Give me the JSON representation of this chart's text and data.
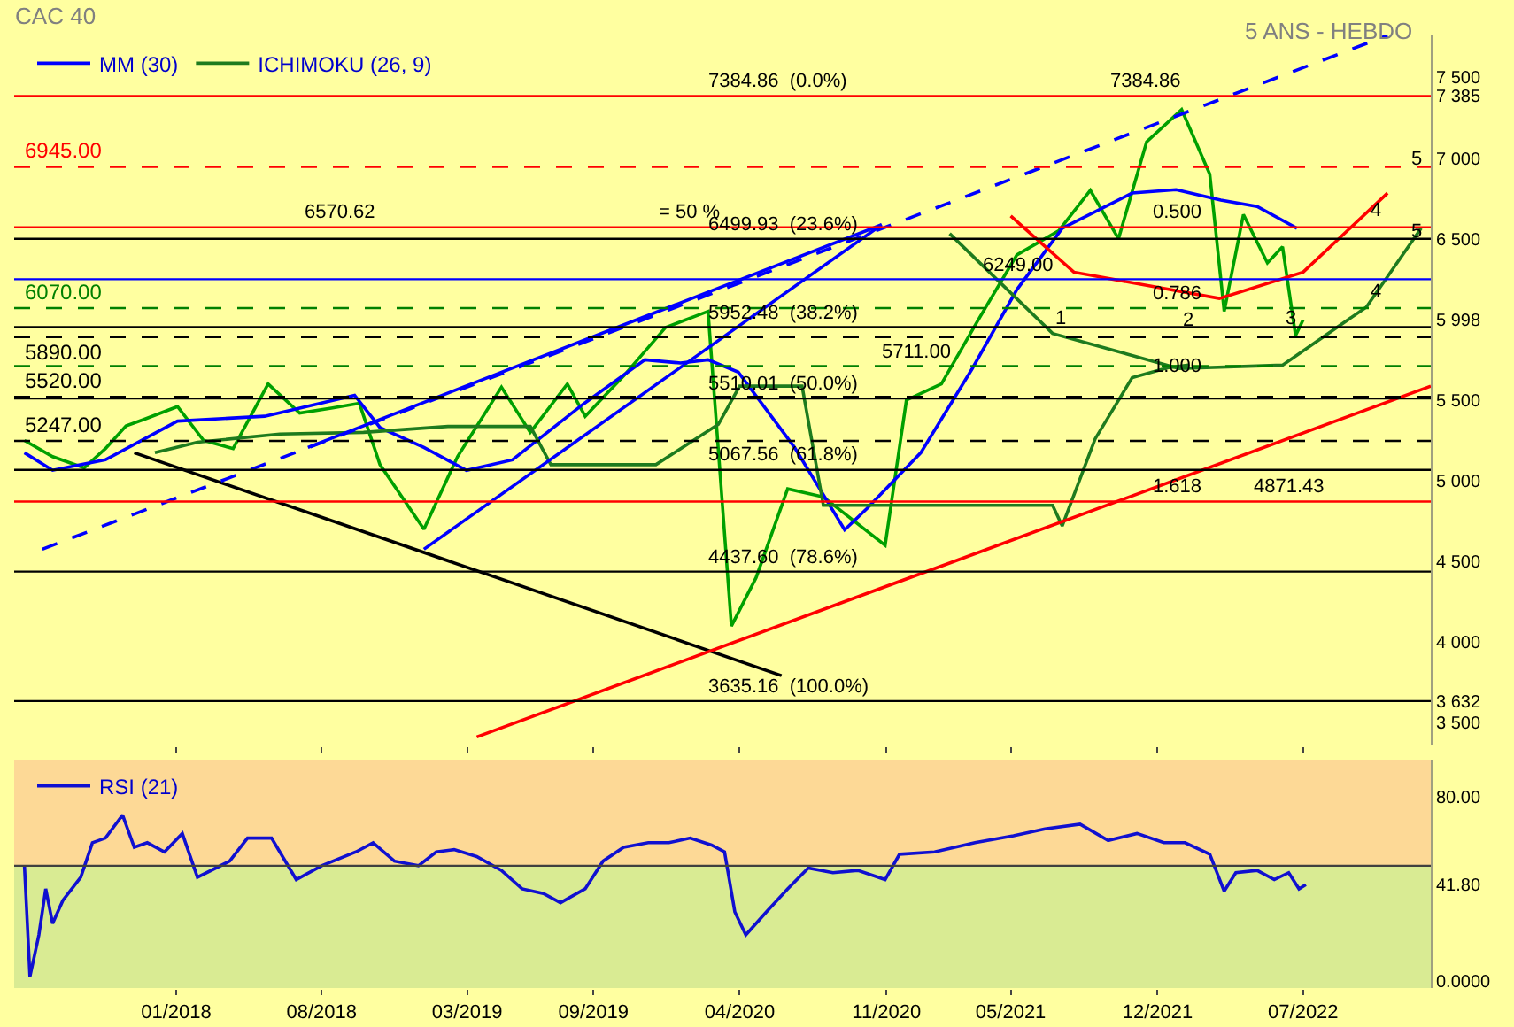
{
  "chart_data": [
    {
      "type": "line",
      "title": "CAC 40",
      "subtitle": "5 ANS - HEBDO",
      "legend": "top left",
      "tick_labels": "y",
      "x": [
        "2017-05-25",
        "2017-07-05",
        "2017-08-20",
        "2017-09-20",
        "2017-10-20",
        "2017-11-15",
        "2018-01-03",
        "2018-02-10",
        "2018-03-25",
        "2018-05-15",
        "2018-06-30",
        "2018-08-15",
        "2018-09-25",
        "2018-10-25",
        "2018-12-28",
        "2019-02-15",
        "2019-04-20",
        "2019-06-01",
        "2019-07-25",
        "2019-08-20",
        "2019-10-15",
        "2019-12-15",
        "2020-02-15",
        "2020-03-20",
        "2020-04-25",
        "2020-06-10",
        "2020-08-01",
        "2020-10-30",
        "2020-11-30",
        "2021-01-20",
        "2021-03-15",
        "2021-05-10",
        "2021-07-10",
        "2021-08-25",
        "2021-10-05",
        "2021-11-15",
        "2022-01-05",
        "2022-02-15",
        "2022-03-08",
        "2022-04-05",
        "2022-05-10",
        "2022-06-01",
        "2022-06-20",
        "2022-07-01"
      ],
      "xlim": [
        "2017-05-10",
        "2023-01-03"
      ],
      "xticks": [
        {
          "value": "2018-01-01",
          "label": null
        },
        {
          "value": "2018-08-01",
          "label": null
        },
        {
          "value": "2019-03-01",
          "label": null
        },
        {
          "value": "2019-09-01",
          "label": null
        },
        {
          "value": "2020-04-01",
          "label": null
        },
        {
          "value": "2020-11-01",
          "label": null
        },
        {
          "value": "2021-05-01",
          "label": null
        },
        {
          "value": "2021-12-01",
          "label": null
        },
        {
          "value": "2022-07-01",
          "label": null
        }
      ],
      "ylim": [
        3360,
        7760
      ],
      "yticks": [
        {
          "value": 3500,
          "label": "3 500"
        },
        {
          "value": 3632,
          "label": "3 632"
        },
        {
          "value": 4000,
          "label": "4 000"
        },
        {
          "value": 4500,
          "label": "4 500"
        },
        {
          "value": 5000,
          "label": "5 000"
        },
        {
          "value": 5500,
          "label": "5 500"
        },
        {
          "value": 5998,
          "label": "5 998"
        },
        {
          "value": 6500,
          "label": "6 500"
        },
        {
          "value": 7000,
          "label": "7 000"
        },
        {
          "value": 7385,
          "label": "7 385"
        },
        {
          "value": 7500,
          "label": "7 500"
        }
      ],
      "series": [
        {
          "color": "#00a000",
          "values": [
            5250,
            5150,
            5080,
            5200,
            5340,
            5380,
            5460,
            5250,
            5200,
            5600,
            5420,
            5450,
            5480,
            5100,
            4700,
            5150,
            5580,
            5300,
            5600,
            5400,
            5650,
            5950,
            6050,
            4100,
            4400,
            4950,
            4900,
            4600,
            5500,
            5600,
            6000,
            6400,
            6550,
            6800,
            6500,
            7100,
            7300,
            6900,
            6050,
            6650,
            6350,
            6450,
            5900,
            5998
          ]
        },
        {
          "name": "MM (30)",
          "color": "#0000ff",
          "x": [
            "2017-05-25",
            "2017-07-05",
            "2017-09-20",
            "2018-01-03",
            "2018-05-10",
            "2018-09-18",
            "2018-10-25",
            "2018-12-28",
            "2019-02-28",
            "2019-05-06",
            "2019-08-18",
            "2019-11-15",
            "2020-01-06",
            "2020-02-15",
            "2020-03-30",
            "2020-06-20",
            "2020-09-01",
            "2020-10-03",
            "2020-12-21",
            "2021-03-06",
            "2021-05-10",
            "2021-07-15",
            "2021-10-25",
            "2021-12-28",
            "2022-03-03",
            "2022-04-25",
            "2022-06-22"
          ],
          "values": [
            5174,
            5065,
            5130,
            5370,
            5400,
            5530,
            5330,
            5207,
            5065,
            5130,
            5478,
            5750,
            5730,
            5750,
            5674,
            5207,
            4696,
            4826,
            5174,
            5696,
            6185,
            6565,
            6783,
            6804,
            6740,
            6700,
            6565
          ]
        },
        {
          "name": "ICHIMOKU (26, 9)",
          "color": "#1e7b1e",
          "x": [
            "2017-12-01",
            "2018-02-01",
            "2018-06-01",
            "2018-10-01",
            "2019-02-01",
            "2019-06-01",
            "2019-07-01",
            "2019-12-01",
            "2020-03-01",
            "2020-04-01",
            "2020-07-01",
            "2020-08-01",
            "2021-07-01",
            "2021-07-15",
            "2021-09-01",
            "2021-10-25",
            "2021-12-15",
            "2022-01-15"
          ],
          "values": [
            5174,
            5239,
            5290,
            5300,
            5337,
            5337,
            5100,
            5100,
            5350,
            5587,
            5587,
            4848,
            4848,
            4720,
            5260,
            5640,
            5700,
            5717
          ]
        },
        {
          "color": "#1e7b1e",
          "x": [
            "2021-02-01",
            "2021-07-01",
            "2022-01-01",
            "2022-06-01",
            "2022-10-01",
            "2022-12-20"
          ],
          "values": [
            6532,
            5913,
            5696,
            5717,
            6076,
            6565
          ]
        },
        {
          "color": "#ff0000",
          "x": [
            "2021-05-01",
            "2021-08-01",
            "2022-03-01",
            "2022-07-01",
            "2022-11-01"
          ],
          "values": [
            6641,
            6293,
            6130,
            6293,
            6783
          ]
        },
        {
          "color": "#000000",
          "x": [
            "2017-11-01",
            "2020-06-01"
          ],
          "values": [
            5174,
            3793
          ]
        },
        {
          "color": "#ff0000",
          "x": [
            "2019-03-15",
            "2023-01-03"
          ],
          "values": [
            3413,
            5587
          ]
        },
        {
          "color": "#0000ff",
          "line_style": "dashed",
          "x": [
            "2017-06-20",
            "2022-11-01"
          ],
          "values": [
            4576,
            7760
          ]
        },
        {
          "color": "#0000ff",
          "x": [
            "2018-12-28",
            "2020-10-25"
          ],
          "values": [
            4576,
            6587
          ]
        },
        {
          "color": "#0000ff",
          "x": [
            "2018-07-12",
            "2020-10-25"
          ],
          "values": [
            5207,
            6587
          ]
        }
      ],
      "ref_lines": [
        {
          "axis": "y",
          "value": 7384.86,
          "color": "#ff0000"
        },
        {
          "axis": "y",
          "value": 6945,
          "label": "6945.00",
          "color": "#ff0000",
          "line_style": "dashed"
        },
        {
          "axis": "y",
          "value": 6570.62,
          "color": "#ff0000"
        },
        {
          "axis": "y",
          "value": 6249,
          "color": "#0000ff"
        },
        {
          "axis": "y",
          "value": 6070,
          "label": "6070.00",
          "color": "#008000",
          "line_style": "dashed"
        },
        {
          "axis": "y",
          "value": 5890,
          "label": "5890.00",
          "color": "#000000",
          "line_style": "dashed"
        },
        {
          "axis": "y",
          "value": 5711,
          "color": "#008000",
          "line_style": "dashed"
        },
        {
          "axis": "y",
          "value": 5520,
          "label": "5520.00",
          "color": "#000000",
          "line_style": "dashed"
        },
        {
          "axis": "y",
          "value": 5247,
          "label": "5247.00",
          "color": "#000000",
          "line_style": "dashed"
        },
        {
          "axis": "y",
          "value": 4871.43,
          "color": "#ff0000"
        },
        {
          "axis": "y",
          "value": 6499.93,
          "color": "#000000"
        },
        {
          "axis": "y",
          "value": 5952.48,
          "color": "#000000"
        },
        {
          "axis": "y",
          "value": 5510.01,
          "color": "#000000"
        },
        {
          "axis": "y",
          "value": 5067.56,
          "color": "#000000"
        },
        {
          "axis": "y",
          "value": 4437.6,
          "color": "#000000"
        },
        {
          "axis": "y",
          "value": 3635.16,
          "color": "#000000"
        }
      ],
      "annotations": [
        {
          "text": "7384.86  (0.0%)",
          "x": "2020-02-10",
          "y": 7384.86
        },
        {
          "text": "6499.93  (23.6%)",
          "x": "2020-02-10",
          "y": 6499.93
        },
        {
          "text": "5952.48  (38.2%)",
          "x": "2020-02-10",
          "y": 5952.48
        },
        {
          "text": "5510.01  (50.0%)",
          "x": "2020-02-10",
          "y": 5510.01
        },
        {
          "text": "5067.56  (61.8%)",
          "x": "2020-02-10",
          "y": 5067.56
        },
        {
          "text": "4437.60  (78.6%)",
          "x": "2020-02-10",
          "y": 4437.6
        },
        {
          "text": "3635.16  (100.0%)",
          "x": "2020-02-10",
          "y": 3635.16
        },
        {
          "text": "6249.00",
          "x": "2021-03-15",
          "y": 6249
        },
        {
          "text": "5711.00",
          "x": "2020-10-20",
          "y": 5711
        },
        {
          "text": "4871.43",
          "x": "2022-04-15",
          "y": 4871.43
        },
        {
          "text": "7384.86",
          "x": "2021-09-18",
          "y": 7384.86
        },
        {
          "text": "6570.62",
          "x": "2018-07-01",
          "y": 6570.62
        },
        {
          "text": "= 50 %",
          "x": "2019-12-01",
          "y": 6570.62
        },
        {
          "text": "0.500",
          "x": "2021-11-20",
          "y": 6570.62
        },
        {
          "text": "0.786",
          "x": "2021-11-20",
          "y": 6070
        },
        {
          "text": "1.000",
          "x": "2021-11-20",
          "y": 5620
        },
        {
          "text": "1.618",
          "x": "2021-11-20",
          "y": 4871.43
        },
        {
          "text": "1",
          "x": "2021-07-01",
          "y": 5913
        },
        {
          "text": "2",
          "x": "2022-01-01",
          "y": 5902
        },
        {
          "text": "3",
          "x": "2022-06-01",
          "y": 5913
        },
        {
          "text": "4",
          "x": "2022-10-01",
          "y": 6587
        },
        {
          "text": "4",
          "x": "2022-10-01",
          "y": 6076
        },
        {
          "text": "5",
          "x": "2022-12-01",
          "y": 6902
        },
        {
          "text": "5",
          "x": "2022-12-01",
          "y": 6449
        }
      ]
    },
    {
      "type": "line",
      "legend": "top left",
      "x": [
        "2017-05-25",
        "2017-06-02",
        "2017-06-15",
        "2017-06-25",
        "2017-07-05",
        "2017-07-20",
        "2017-08-15",
        "2017-09-01",
        "2017-09-20",
        "2017-10-15",
        "2017-11-01",
        "2017-11-20",
        "2017-12-15",
        "2018-01-10",
        "2018-02-01",
        "2018-03-20",
        "2018-04-15",
        "2018-05-20",
        "2018-06-25",
        "2018-08-01",
        "2018-09-20",
        "2018-10-15",
        "2018-11-15",
        "2018-12-20",
        "2019-01-15",
        "2019-02-10",
        "2019-03-15",
        "2019-04-20",
        "2019-05-20",
        "2019-06-20",
        "2019-07-15",
        "2019-08-20",
        "2019-09-15",
        "2019-10-15",
        "2019-11-20",
        "2019-12-20",
        "2020-01-20",
        "2020-02-20",
        "2020-03-10",
        "2020-03-25",
        "2020-04-10",
        "2020-05-10",
        "2020-06-10",
        "2020-07-10",
        "2020-08-15",
        "2020-09-20",
        "2020-10-30",
        "2020-11-20",
        "2021-01-10",
        "2021-03-10",
        "2021-05-05",
        "2021-06-20",
        "2021-08-10",
        "2021-09-20",
        "2021-11-01",
        "2021-12-10",
        "2022-01-10",
        "2022-02-15",
        "2022-03-08",
        "2022-03-25",
        "2022-04-25",
        "2022-05-20",
        "2022-06-10",
        "2022-06-25",
        "2022-07-05"
      ],
      "xlim": [
        "2017-05-10",
        "2023-01-03"
      ],
      "xticks": [
        {
          "value": "2018-01-01",
          "label": "01/2018"
        },
        {
          "value": "2018-08-01",
          "label": "08/2018"
        },
        {
          "value": "2019-03-01",
          "label": "03/2019"
        },
        {
          "value": "2019-09-01",
          "label": "09/2019"
        },
        {
          "value": "2020-04-01",
          "label": "04/2020"
        },
        {
          "value": "2020-11-01",
          "label": "11/2020"
        },
        {
          "value": "2021-05-01",
          "label": "05/2021"
        },
        {
          "value": "2021-12-01",
          "label": "12/2021"
        },
        {
          "value": "2022-07-01",
          "label": "07/2022"
        }
      ],
      "ylim": [
        -3,
        96
      ],
      "yticks": [
        {
          "value": 0,
          "label": "0.0000"
        },
        {
          "value": 41.8,
          "label": "41.80"
        },
        {
          "value": 80,
          "label": "80.00"
        }
      ],
      "series": [
        {
          "name": "RSI (21)",
          "color": "#1010d0",
          "values": [
            50,
            2,
            20,
            40,
            25,
            35,
            45,
            60,
            62,
            72,
            58,
            60,
            56,
            64,
            45,
            52,
            62,
            62,
            44,
            50,
            56,
            60,
            52,
            50,
            56,
            57,
            54,
            48,
            40,
            38,
            34,
            40,
            52,
            58,
            60,
            60,
            62,
            59,
            56,
            30,
            20,
            30,
            40,
            49,
            47,
            48,
            44,
            55,
            56,
            60,
            63,
            66,
            68,
            61,
            64,
            60,
            60,
            55,
            39,
            47,
            48,
            44,
            47,
            40,
            41.8
          ]
        }
      ],
      "ref_lines": [
        {
          "axis": "y",
          "value": 50,
          "color": "#404040"
        }
      ],
      "bands": [
        {
          "axis": "y",
          "from": 50,
          "to": 96,
          "color": "#fdd996"
        },
        {
          "axis": "y",
          "from": -3,
          "to": 50,
          "color": "#d9eb93"
        }
      ]
    }
  ]
}
